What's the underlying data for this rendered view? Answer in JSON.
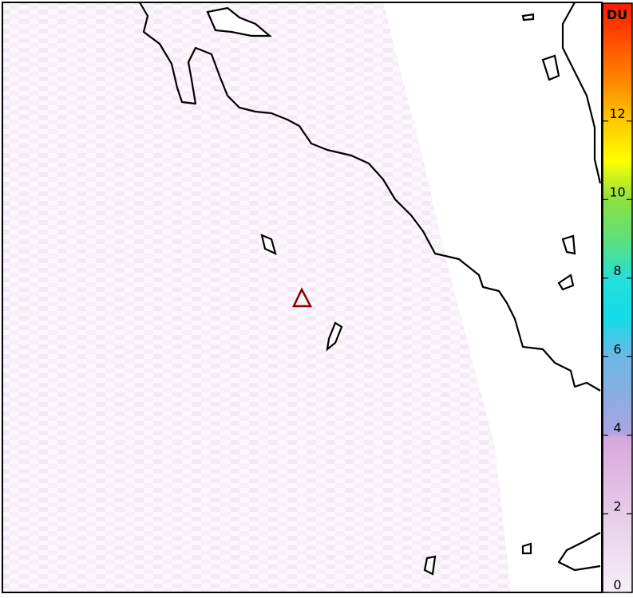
{
  "colorbar": {
    "label": "DU",
    "lim": [
      0,
      15
    ],
    "ticks": [
      0,
      2,
      4,
      6,
      8,
      10,
      12
    ],
    "stops": [
      [
        0,
        "#f6f0f7"
      ],
      [
        3.9,
        "#d8a8dc"
      ],
      [
        4.1,
        "#a8a4e0"
      ],
      [
        6,
        "#6cb8e4"
      ],
      [
        7,
        "#14dce8"
      ],
      [
        8,
        "#24e0d8"
      ],
      [
        9,
        "#5ee07a"
      ],
      [
        10,
        "#8ee040"
      ],
      [
        11,
        "#ffff00"
      ],
      [
        12,
        "#ffc800"
      ],
      [
        13,
        "#ff8800"
      ],
      [
        15,
        "#ff1a00"
      ]
    ]
  },
  "marker": {
    "color": "#8b0000"
  }
}
